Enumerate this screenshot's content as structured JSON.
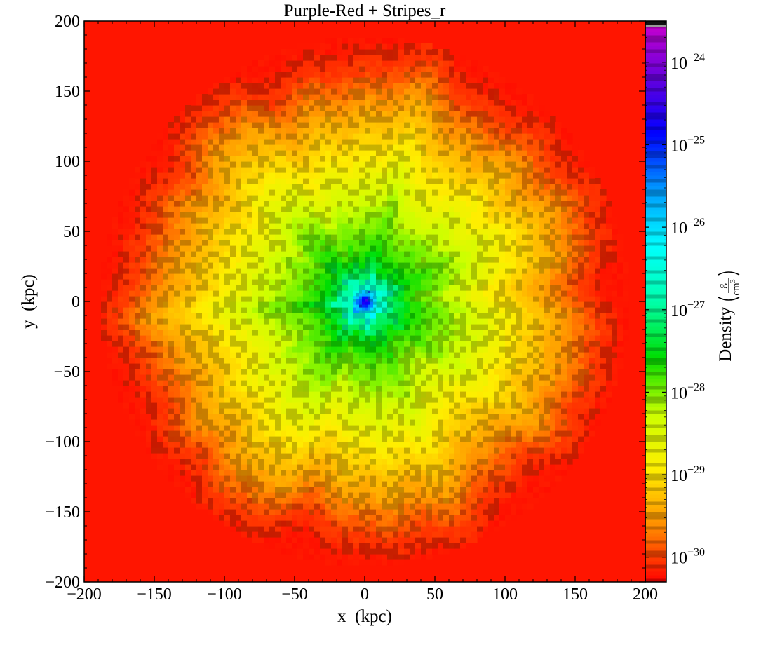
{
  "chart_data": {
    "type": "heatmap",
    "title": "Purple-Red + Stripes_r",
    "xlabel": "x  (kpc)",
    "ylabel": "y  (kpc)",
    "xlim": [
      -200,
      200
    ],
    "ylim": [
      -200,
      200
    ],
    "x_ticks": [
      -200,
      -150,
      -100,
      -50,
      0,
      50,
      100,
      150,
      200
    ],
    "y_ticks": [
      -200,
      -150,
      -100,
      -50,
      0,
      50,
      100,
      150,
      200
    ],
    "x_tick_labels": [
      "−200",
      "−150",
      "−100",
      "−50",
      "0",
      "50",
      "100",
      "150",
      "200"
    ],
    "y_tick_labels": [
      "−200",
      "−150",
      "−100",
      "−50",
      "0",
      "50",
      "100",
      "150",
      "200"
    ],
    "colorbar": {
      "label": "Density",
      "units": "g / cm^3",
      "units_numerator": "g",
      "units_denominator": "cm",
      "units_denominator_exponent": "3",
      "scale": "log",
      "log_range": [
        -30.3,
        -23.5
      ],
      "tick_exponents": [
        -30,
        -29,
        -28,
        -27,
        -26,
        -25,
        -24
      ],
      "tick_base": "10",
      "tick_labels": [
        "−30",
        "−29",
        "−28",
        "−27",
        "−26",
        "−25",
        "−24"
      ],
      "colormap": [
        "#ff0000",
        "#ff8c00",
        "#ffee00",
        "#ccff00",
        "#00dd00",
        "#00ffaa",
        "#00ffff",
        "#0099ff",
        "#0000ff",
        "#6600dd",
        "#cc00cc"
      ]
    },
    "density_profile": {
      "description_units": "radius in kpc, log10 density in g/cm^3",
      "radius": [
        0,
        5,
        10,
        20,
        30,
        45,
        60,
        80,
        100,
        120,
        140,
        155,
        165,
        175,
        185
      ],
      "log_density": [
        -24.3,
        -25.5,
        -26.5,
        -27.2,
        -27.6,
        -27.9,
        -28.1,
        -28.5,
        -28.9,
        -29.2,
        -29.5,
        -29.8,
        -30.0,
        -30.1,
        -30.2
      ]
    },
    "background_log_density": -30.2,
    "grid": false
  }
}
